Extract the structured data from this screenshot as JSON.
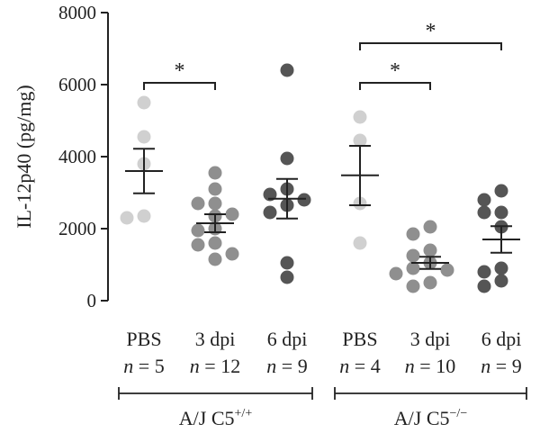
{
  "chart_data": {
    "type": "scatter",
    "ylabel": "IL-12p40 (pg/mg)",
    "ylim": [
      0,
      8000
    ],
    "yticks": [
      "0",
      "2000",
      "4000",
      "6000",
      "8000"
    ],
    "categories": [
      {
        "label": "PBS",
        "n_label": "n = 5",
        "color": "#d0d0d0",
        "values": [
          5500,
          4550,
          2350,
          2300,
          3800
        ],
        "mean": 3600,
        "sem_low": 2980,
        "sem_high": 4220
      },
      {
        "label": "3 dpi",
        "n_label": "n = 12",
        "color": "#8f8f8f",
        "values": [
          3550,
          3100,
          2700,
          2700,
          2400,
          2350,
          2000,
          1950,
          1600,
          1550,
          1300,
          1150
        ],
        "mean": 2150,
        "sem_low": 1900,
        "sem_high": 2400
      },
      {
        "label": "6 dpi",
        "n_label": "n = 9",
        "color": "#555555",
        "values": [
          6400,
          3950,
          3100,
          2950,
          2800,
          2650,
          2450,
          1050,
          650
        ],
        "mean": 2830,
        "sem_low": 2280,
        "sem_high": 3380
      },
      {
        "label": "PBS",
        "n_label": "n = 4",
        "color": "#d0d0d0",
        "values": [
          5100,
          4450,
          2700,
          1600
        ],
        "mean": 3480,
        "sem_low": 2650,
        "sem_high": 4300
      },
      {
        "label": "3 dpi",
        "n_label": "n = 10",
        "color": "#8f8f8f",
        "values": [
          2050,
          1850,
          1400,
          1250,
          1050,
          900,
          850,
          750,
          500,
          400
        ],
        "mean": 1050,
        "sem_low": 880,
        "sem_high": 1220
      },
      {
        "label": "6 dpi",
        "n_label": "n = 9",
        "color": "#555555",
        "values": [
          3050,
          2800,
          2450,
          2450,
          2050,
          900,
          800,
          550,
          400
        ],
        "mean": 1700,
        "sem_low": 1330,
        "sem_high": 2070
      }
    ],
    "groups": [
      {
        "label": "A/J C5",
        "superscript": "+/+",
        "from": 0,
        "to": 2
      },
      {
        "label": "A/J C5",
        "superscript": "−/−",
        "from": 3,
        "to": 5
      }
    ],
    "significance": [
      {
        "from": 0,
        "to": 1,
        "label": "*",
        "y": 6050
      },
      {
        "from": 3,
        "to": 4,
        "label": "*",
        "y": 6050
      },
      {
        "from": 3,
        "to": 5,
        "label": "*",
        "y": 7150
      }
    ]
  }
}
